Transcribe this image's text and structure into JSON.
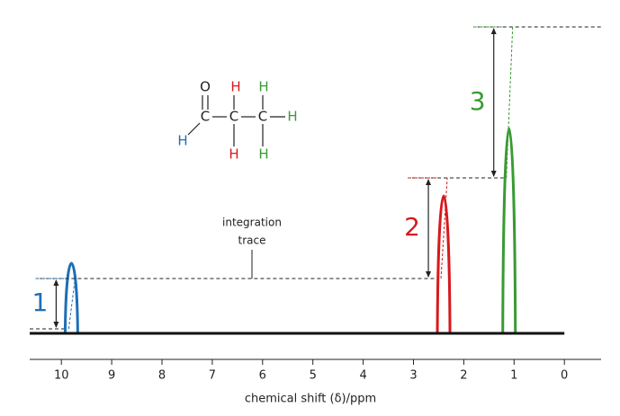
{
  "chart_data": {
    "type": "nmr",
    "xlabel": "chemical shift (δ)/ppm",
    "xlim": [
      10.63,
      -0.73
    ],
    "xticks": [
      10,
      9,
      8,
      7,
      6,
      5,
      4,
      3,
      2,
      1,
      0
    ],
    "annotation": [
      "integration",
      "trace"
    ],
    "peaks": [
      {
        "shift": 9.8,
        "integration": 1,
        "color": "#1f6fb5"
      },
      {
        "shift": 2.4,
        "integration": 2,
        "color": "#d7191c"
      },
      {
        "shift": 1.1,
        "integration": 3,
        "color": "#3a9a35"
      }
    ],
    "molecule": {
      "atoms": [
        {
          "label": "O",
          "color": "#222222"
        },
        {
          "label": "H",
          "color": "#d7191c"
        },
        {
          "label": "H",
          "color": "#3a9a35"
        },
        {
          "label": "C",
          "color": "#222222"
        },
        {
          "label": "C",
          "color": "#222222"
        },
        {
          "label": "C",
          "color": "#222222"
        },
        {
          "label": "H",
          "color": "#3a9a35"
        },
        {
          "label": "H",
          "color": "#1f6fb5"
        },
        {
          "label": "H",
          "color": "#d7191c"
        },
        {
          "label": "H",
          "color": "#3a9a35"
        }
      ]
    }
  }
}
